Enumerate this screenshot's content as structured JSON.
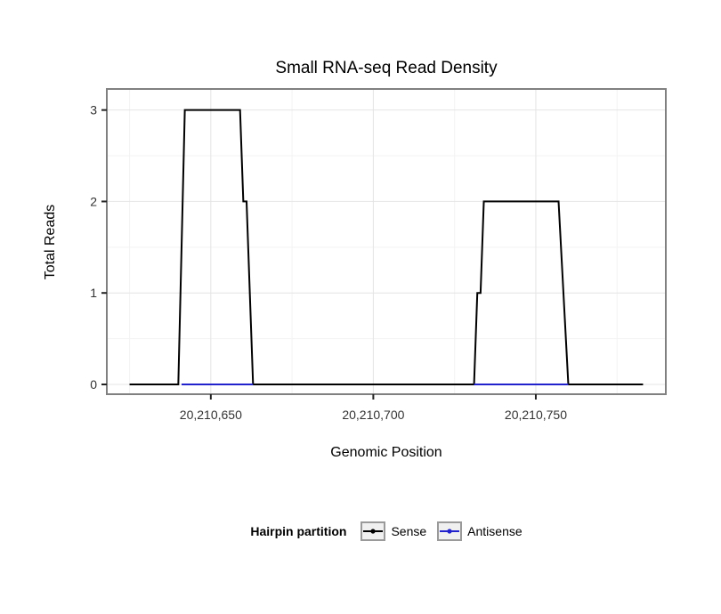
{
  "chart_data": {
    "type": "line",
    "title": "Small RNA-seq Read Density",
    "xlabel": "Genomic Position",
    "ylabel": "Total Reads",
    "legend_title": "Hairpin partition",
    "xlim": [
      20210618,
      20210790
    ],
    "ylim": [
      -0.107,
      3.23
    ],
    "x_ticks": [
      {
        "value": 20210650,
        "label": "20,210,650"
      },
      {
        "value": 20210700,
        "label": "20,210,700"
      },
      {
        "value": 20210750,
        "label": "20,210,750"
      }
    ],
    "y_ticks": [
      {
        "value": 0,
        "label": "0"
      },
      {
        "value": 1,
        "label": "1"
      },
      {
        "value": 2,
        "label": "2"
      },
      {
        "value": 3,
        "label": "3"
      }
    ],
    "x_minor": [
      20210625,
      20210675,
      20210725,
      20210775
    ],
    "y_minor": [
      0.5,
      1.5,
      2.5
    ],
    "colors": {
      "grid_major": "#e4e4e4",
      "grid_minor": "#f3f3f3",
      "panel_border": "#808080",
      "tick": "#222222",
      "tick_label": "#333333"
    },
    "series": [
      {
        "name": "Sense",
        "color": "#000000",
        "segments": [
          [
            [
              20210625,
              0
            ],
            [
              20210640,
              0
            ],
            [
              20210642,
              3
            ],
            [
              20210659,
              3
            ],
            [
              20210660,
              2
            ],
            [
              20210661,
              2
            ],
            [
              20210663,
              0
            ],
            [
              20210731,
              0
            ],
            [
              20210732,
              1
            ],
            [
              20210733,
              1
            ],
            [
              20210734,
              2
            ],
            [
              20210757,
              2
            ],
            [
              20210760,
              0
            ],
            [
              20210783,
              0
            ]
          ]
        ]
      },
      {
        "name": "Antisense",
        "color": "#2222cc",
        "segments": [
          [
            [
              20210641,
              0
            ],
            [
              20210663,
              0
            ]
          ],
          [
            [
              20210731,
              0
            ],
            [
              20210760,
              0
            ]
          ]
        ]
      }
    ],
    "grid": "on",
    "legend_position": "bottom"
  }
}
